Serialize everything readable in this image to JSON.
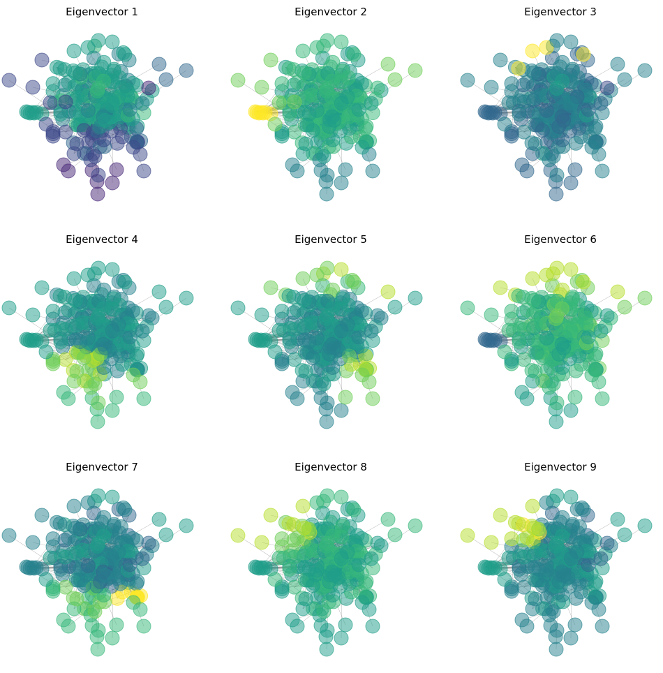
{
  "chart_data": {
    "type": "network",
    "description_free": true,
    "colormap": [
      "#440154",
      "#482878",
      "#3e4989",
      "#31688e",
      "#26828e",
      "#1f9e89",
      "#35b779",
      "#6ece58",
      "#b5de2b",
      "#fde725"
    ],
    "panels": [
      {
        "title": "Eigenvector 1",
        "color_mode": "v1"
      },
      {
        "title": "Eigenvector 2",
        "color_mode": "v2"
      },
      {
        "title": "Eigenvector 3",
        "color_mode": "v3"
      },
      {
        "title": "Eigenvector 4",
        "color_mode": "v4"
      },
      {
        "title": "Eigenvector 5",
        "color_mode": "v5"
      },
      {
        "title": "Eigenvector 6",
        "color_mode": "v6"
      },
      {
        "title": "Eigenvector 7",
        "color_mode": "v7"
      },
      {
        "title": "Eigenvector 8",
        "color_mode": "v8"
      },
      {
        "title": "Eigenvector 9",
        "color_mode": "v9"
      }
    ],
    "node_count": 180,
    "grid": false,
    "axes": false
  }
}
